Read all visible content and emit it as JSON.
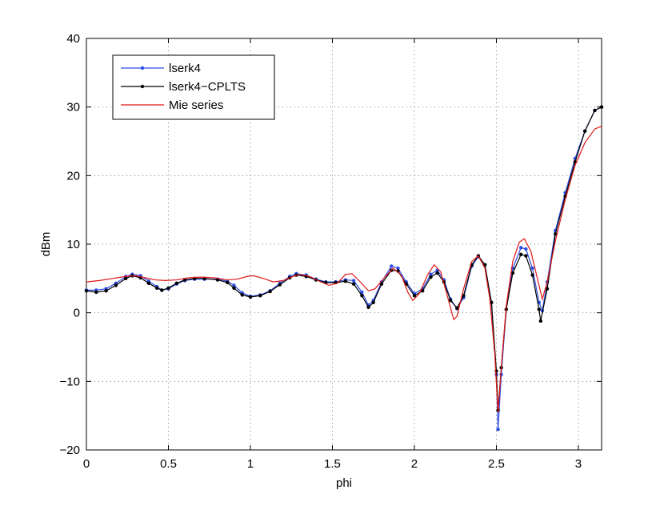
{
  "chart_data": {
    "type": "line",
    "title": "",
    "xlabel": "phi",
    "ylabel": "dBm",
    "xlim": [
      0,
      3.1416
    ],
    "ylim": [
      -20,
      40
    ],
    "xticks": [
      0,
      0.5,
      1,
      1.5,
      2,
      2.5,
      3
    ],
    "xtick_labels": [
      "0",
      "0.5",
      "1",
      "1.5",
      "2",
      "2.5",
      "3"
    ],
    "yticks": [
      -20,
      -10,
      0,
      10,
      20,
      30,
      40
    ],
    "ytick_labels": [
      "−20",
      "−10",
      "0",
      "10",
      "20",
      "30",
      "40"
    ],
    "grid": true,
    "legend_position": "top-left",
    "series": [
      {
        "name": "lserk4",
        "color": "#2b4ce6",
        "marker": "dot",
        "points": [
          [
            0,
            3.3
          ],
          [
            0.06,
            3.3
          ],
          [
            0.12,
            3.5
          ],
          [
            0.18,
            4.3
          ],
          [
            0.24,
            5.3
          ],
          [
            0.28,
            5.6
          ],
          [
            0.33,
            5.4
          ],
          [
            0.38,
            4.6
          ],
          [
            0.43,
            3.8
          ],
          [
            0.46,
            3.3
          ],
          [
            0.5,
            3.5
          ],
          [
            0.55,
            4.2
          ],
          [
            0.6,
            4.7
          ],
          [
            0.66,
            4.9
          ],
          [
            0.72,
            4.9
          ],
          [
            0.8,
            4.9
          ],
          [
            0.86,
            4.6
          ],
          [
            0.9,
            4.0
          ],
          [
            0.95,
            2.9
          ],
          [
            1.0,
            2.4
          ],
          [
            1.06,
            2.6
          ],
          [
            1.12,
            3.2
          ],
          [
            1.18,
            4.3
          ],
          [
            1.24,
            5.3
          ],
          [
            1.28,
            5.7
          ],
          [
            1.34,
            5.5
          ],
          [
            1.4,
            4.9
          ],
          [
            1.46,
            4.5
          ],
          [
            1.52,
            4.5
          ],
          [
            1.58,
            4.8
          ],
          [
            1.63,
            4.7
          ],
          [
            1.68,
            3.0
          ],
          [
            1.72,
            1.1
          ],
          [
            1.75,
            1.8
          ],
          [
            1.8,
            4.5
          ],
          [
            1.86,
            6.8
          ],
          [
            1.9,
            6.5
          ],
          [
            1.95,
            4.5
          ],
          [
            2.0,
            2.8
          ],
          [
            2.05,
            3.5
          ],
          [
            2.1,
            5.6
          ],
          [
            2.14,
            6.2
          ],
          [
            2.18,
            4.8
          ],
          [
            2.22,
            2.0
          ],
          [
            2.26,
            0.6
          ],
          [
            2.3,
            2.2
          ],
          [
            2.35,
            6.8
          ],
          [
            2.39,
            8.2
          ],
          [
            2.43,
            7.0
          ],
          [
            2.47,
            1.5
          ],
          [
            2.5,
            -9.0
          ],
          [
            2.51,
            -17.0
          ],
          [
            2.53,
            -9.0
          ],
          [
            2.56,
            0.5
          ],
          [
            2.6,
            6.5
          ],
          [
            2.65,
            9.5
          ],
          [
            2.68,
            9.3
          ],
          [
            2.72,
            6.5
          ],
          [
            2.76,
            1.5
          ],
          [
            2.78,
            0.3
          ],
          [
            2.81,
            4.5
          ],
          [
            2.86,
            12.0
          ],
          [
            2.92,
            17.5
          ],
          [
            2.98,
            22.5
          ],
          [
            3.04,
            26.5
          ],
          [
            3.1,
            29.5
          ],
          [
            3.1416,
            30.0
          ]
        ]
      },
      {
        "name": "lserk4−CPLTS",
        "color": "#000000",
        "marker": "dot",
        "points": [
          [
            0,
            3.2
          ],
          [
            0.06,
            3.0
          ],
          [
            0.12,
            3.2
          ],
          [
            0.18,
            4.0
          ],
          [
            0.24,
            5.0
          ],
          [
            0.28,
            5.4
          ],
          [
            0.33,
            5.1
          ],
          [
            0.38,
            4.3
          ],
          [
            0.43,
            3.6
          ],
          [
            0.46,
            3.3
          ],
          [
            0.5,
            3.6
          ],
          [
            0.55,
            4.3
          ],
          [
            0.6,
            4.8
          ],
          [
            0.66,
            5.0
          ],
          [
            0.72,
            5.0
          ],
          [
            0.8,
            4.8
          ],
          [
            0.86,
            4.4
          ],
          [
            0.9,
            3.6
          ],
          [
            0.95,
            2.6
          ],
          [
            1.0,
            2.3
          ],
          [
            1.06,
            2.5
          ],
          [
            1.12,
            3.1
          ],
          [
            1.18,
            4.1
          ],
          [
            1.24,
            5.1
          ],
          [
            1.28,
            5.5
          ],
          [
            1.34,
            5.3
          ],
          [
            1.4,
            4.8
          ],
          [
            1.46,
            4.4
          ],
          [
            1.52,
            4.4
          ],
          [
            1.58,
            4.6
          ],
          [
            1.63,
            4.2
          ],
          [
            1.68,
            2.5
          ],
          [
            1.72,
            0.8
          ],
          [
            1.75,
            1.5
          ],
          [
            1.8,
            4.2
          ],
          [
            1.86,
            6.2
          ],
          [
            1.9,
            6.1
          ],
          [
            1.95,
            4.2
          ],
          [
            2.0,
            2.5
          ],
          [
            2.05,
            3.2
          ],
          [
            2.1,
            5.2
          ],
          [
            2.14,
            5.8
          ],
          [
            2.18,
            4.5
          ],
          [
            2.22,
            1.8
          ],
          [
            2.26,
            0.7
          ],
          [
            2.3,
            2.5
          ],
          [
            2.35,
            7.0
          ],
          [
            2.39,
            8.3
          ],
          [
            2.43,
            7.0
          ],
          [
            2.47,
            1.5
          ],
          [
            2.5,
            -8.5
          ],
          [
            2.51,
            -14.2
          ],
          [
            2.53,
            -8.0
          ],
          [
            2.56,
            0.5
          ],
          [
            2.6,
            5.8
          ],
          [
            2.65,
            8.5
          ],
          [
            2.68,
            8.3
          ],
          [
            2.72,
            5.5
          ],
          [
            2.76,
            0.5
          ],
          [
            2.77,
            -1.2
          ],
          [
            2.81,
            3.5
          ],
          [
            2.86,
            11.5
          ],
          [
            2.92,
            17.0
          ],
          [
            2.98,
            22.0
          ],
          [
            3.04,
            26.5
          ],
          [
            3.1,
            29.5
          ],
          [
            3.1416,
            30.0
          ]
        ]
      },
      {
        "name": "Mie series",
        "color": "#e01818",
        "marker": "none",
        "points": [
          [
            0,
            4.5
          ],
          [
            0.08,
            4.7
          ],
          [
            0.16,
            5.0
          ],
          [
            0.24,
            5.3
          ],
          [
            0.3,
            5.4
          ],
          [
            0.36,
            5.1
          ],
          [
            0.42,
            4.8
          ],
          [
            0.48,
            4.7
          ],
          [
            0.55,
            4.8
          ],
          [
            0.62,
            5.1
          ],
          [
            0.7,
            5.2
          ],
          [
            0.78,
            5.1
          ],
          [
            0.86,
            4.8
          ],
          [
            0.92,
            4.9
          ],
          [
            0.98,
            5.3
          ],
          [
            1.02,
            5.4
          ],
          [
            1.08,
            5.0
          ],
          [
            1.14,
            4.5
          ],
          [
            1.2,
            4.7
          ],
          [
            1.26,
            5.3
          ],
          [
            1.3,
            5.6
          ],
          [
            1.36,
            5.3
          ],
          [
            1.42,
            4.6
          ],
          [
            1.48,
            4.0
          ],
          [
            1.53,
            4.3
          ],
          [
            1.58,
            5.6
          ],
          [
            1.62,
            5.7
          ],
          [
            1.67,
            4.5
          ],
          [
            1.72,
            3.2
          ],
          [
            1.76,
            3.5
          ],
          [
            1.82,
            5.2
          ],
          [
            1.87,
            6.5
          ],
          [
            1.92,
            5.5
          ],
          [
            1.96,
            3.0
          ],
          [
            1.99,
            1.8
          ],
          [
            2.03,
            2.8
          ],
          [
            2.08,
            5.5
          ],
          [
            2.12,
            7.0
          ],
          [
            2.16,
            6.0
          ],
          [
            2.2,
            2.5
          ],
          [
            2.24,
            -1.0
          ],
          [
            2.26,
            -0.5
          ],
          [
            2.3,
            3.5
          ],
          [
            2.35,
            7.5
          ],
          [
            2.39,
            8.3
          ],
          [
            2.43,
            6.5
          ],
          [
            2.46,
            2.0
          ],
          [
            2.49,
            -6.0
          ],
          [
            2.51,
            -14.5
          ],
          [
            2.53,
            -8.0
          ],
          [
            2.56,
            1.0
          ],
          [
            2.6,
            7.5
          ],
          [
            2.64,
            10.3
          ],
          [
            2.67,
            10.8
          ],
          [
            2.71,
            9.0
          ],
          [
            2.75,
            5.0
          ],
          [
            2.78,
            2.0
          ],
          [
            2.81,
            4.5
          ],
          [
            2.86,
            10.5
          ],
          [
            2.92,
            16.5
          ],
          [
            2.98,
            21.5
          ],
          [
            3.04,
            24.8
          ],
          [
            3.1,
            26.8
          ],
          [
            3.1416,
            27.2
          ]
        ]
      }
    ]
  }
}
